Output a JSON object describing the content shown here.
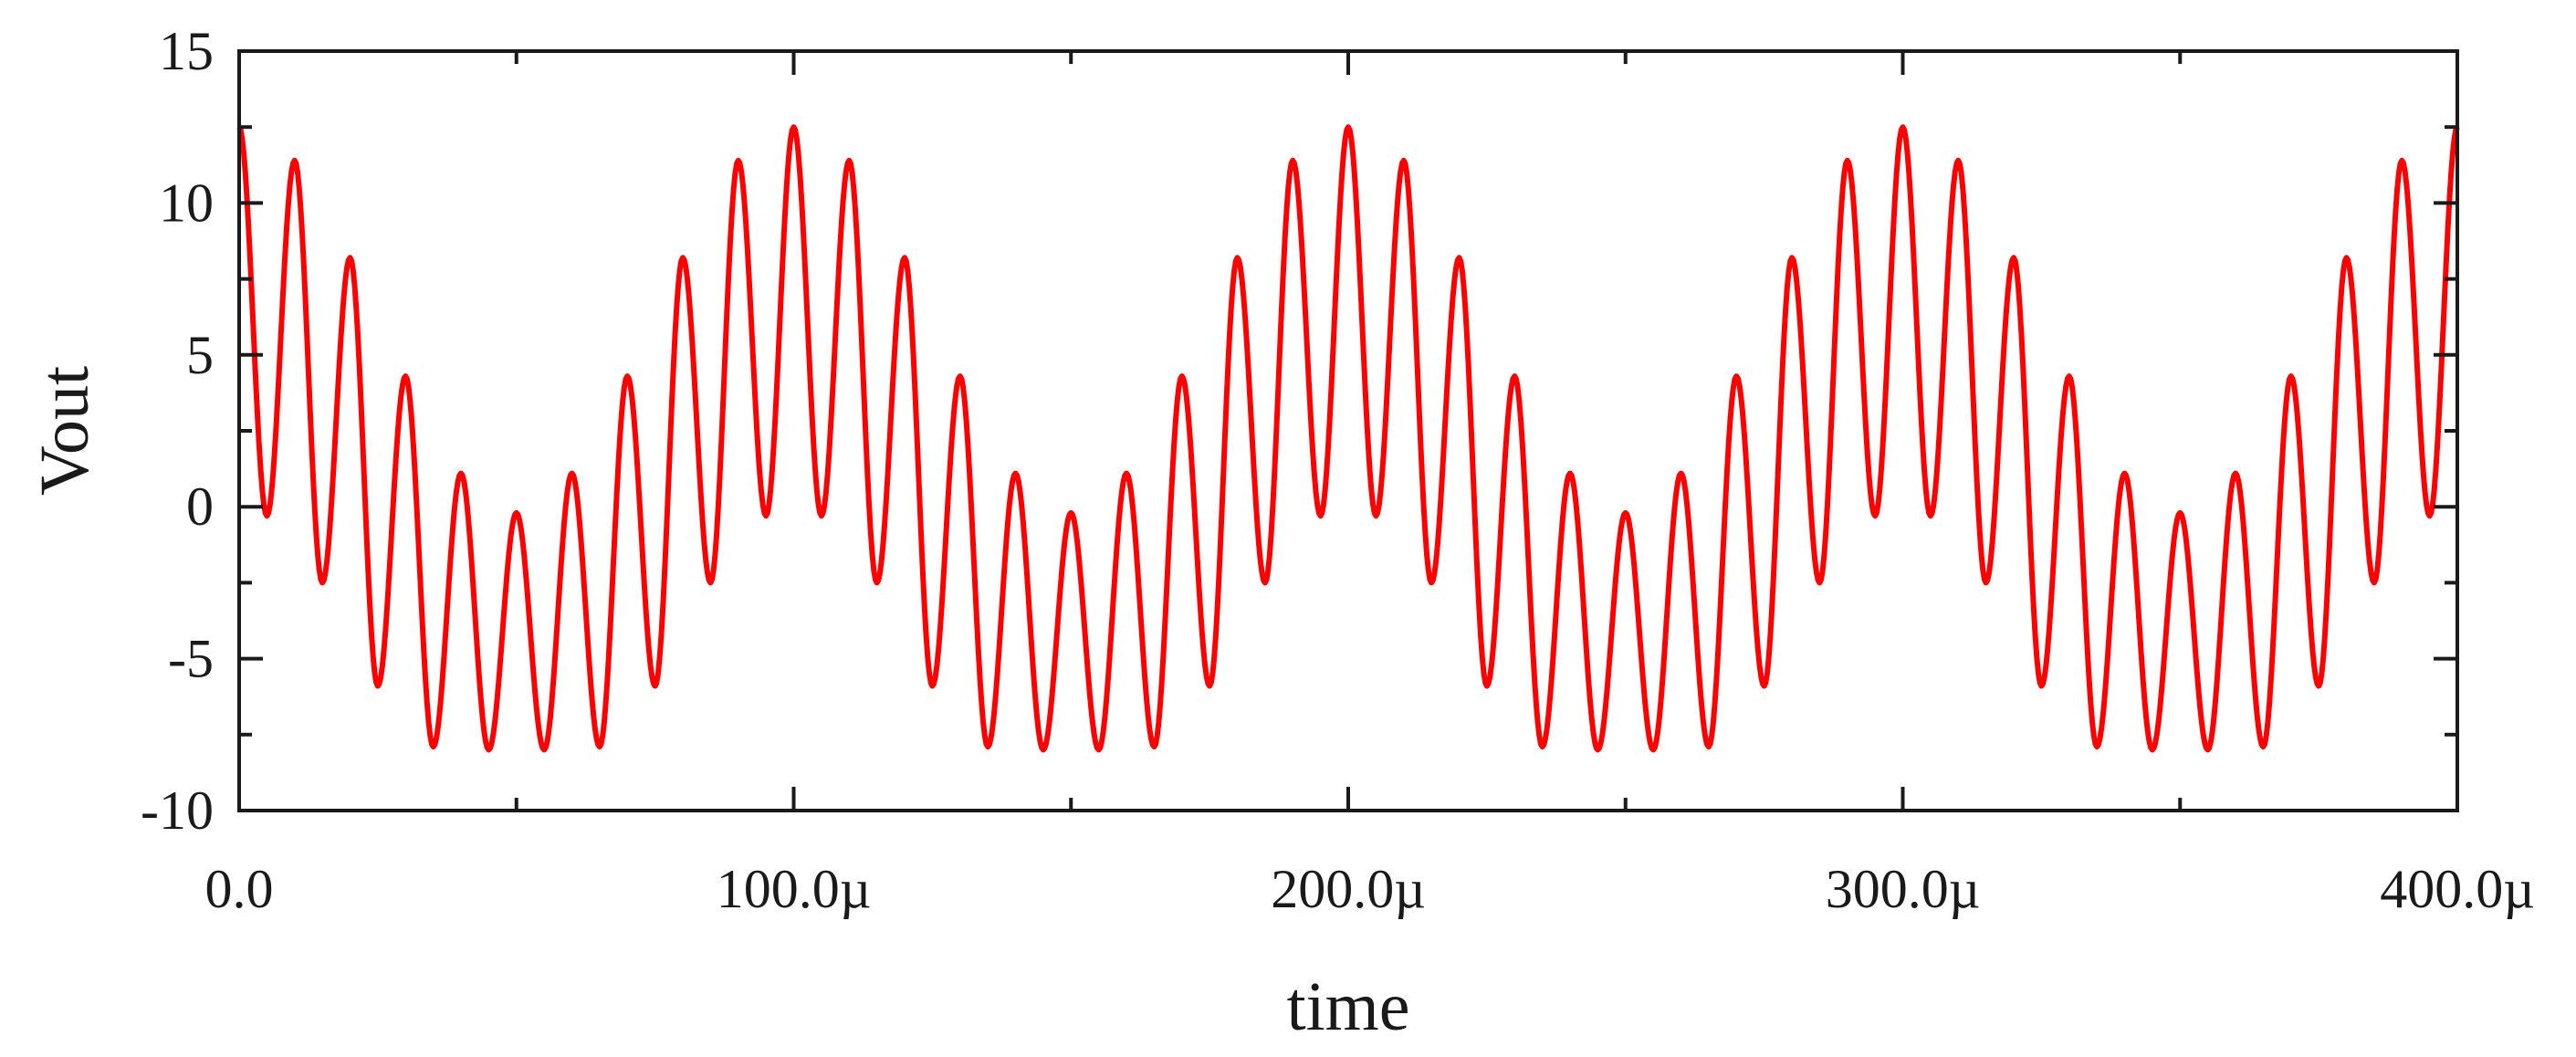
{
  "chart_data": {
    "type": "line",
    "title": "",
    "xlabel": "time",
    "ylabel": "Vout",
    "xlim": [
      0,
      0.0004
    ],
    "ylim": [
      -10,
      15
    ],
    "grid": false,
    "legend": "none",
    "x_ticks": [
      {
        "value": 0,
        "label": "0.0"
      },
      {
        "value": 0.0001,
        "label": "100.0µ"
      },
      {
        "value": 0.0002,
        "label": "200.0µ"
      },
      {
        "value": 0.0003,
        "label": "300.0µ"
      },
      {
        "value": 0.0004,
        "label": "400.0µ"
      }
    ],
    "y_ticks": [
      {
        "value": -10,
        "label": "-10"
      },
      {
        "value": -5,
        "label": "-5"
      },
      {
        "value": 0,
        "label": "0"
      },
      {
        "value": 5,
        "label": "5"
      },
      {
        "value": 10,
        "label": "10"
      },
      {
        "value": 15,
        "label": "15"
      }
    ],
    "series": [
      {
        "color": "#ff0000",
        "x": [
          0,
          1e-05,
          2e-05,
          3e-05,
          4e-05,
          5e-05,
          6e-05,
          7e-05,
          8e-05,
          9e-05,
          0.0001,
          0.00011,
          0.00012,
          0.00013,
          0.00014,
          0.00015,
          0.00016,
          0.00017,
          0.00018,
          0.00019,
          0.0002,
          0.00021,
          0.00022,
          0.00023,
          0.00024,
          0.00025,
          0.00026,
          0.00027,
          0.00028,
          0.00029,
          0.0003,
          0.00031,
          0.00032,
          0.00033,
          0.00034,
          0.00035,
          0.00036,
          0.00037,
          0.00038,
          0.00039,
          0.0004
        ],
        "peaks": [
          12.5,
          11.4,
          8.2,
          4.3,
          1.1,
          -0.2,
          1.1,
          4.3,
          8.2,
          11.4,
          12.5,
          11.4,
          8.2,
          4.3,
          1.1,
          -0.2,
          1.1,
          4.3,
          8.2,
          11.4,
          12.5,
          11.4,
          8.2,
          4.3,
          1.1,
          -0.2,
          1.1,
          4.3,
          8.2,
          11.4,
          12.5,
          11.4,
          8.2,
          4.3,
          1.1,
          -0.2,
          1.1,
          4.3,
          8.2,
          11.4,
          12.5
        ],
        "troughs_x": [
          5e-06,
          1.5e-05,
          2.5e-05,
          3.5e-05,
          4.5e-05,
          5.5e-05,
          6.5e-05,
          7.5e-05,
          8.5e-05,
          9.5e-05,
          0.000105,
          0.000115,
          0.000125,
          0.000135,
          0.000145,
          0.000155,
          0.000165,
          0.000175,
          0.000185,
          0.000195,
          0.000205,
          0.000215,
          0.000225,
          0.000235,
          0.000245,
          0.000255,
          0.000265,
          0.000275,
          0.000285,
          0.000295,
          0.000305,
          0.000315,
          0.000325,
          0.000335,
          0.000345,
          0.000355,
          0.000365,
          0.000375,
          0.000385,
          0.000395
        ],
        "troughs": [
          -0.3,
          -2.5,
          -5.9,
          -7.9,
          -8.0,
          -8.0,
          -7.9,
          -5.9,
          -2.5,
          -0.3,
          -0.3,
          -2.5,
          -5.9,
          -7.9,
          -8.0,
          -8.0,
          -7.9,
          -5.9,
          -2.5,
          -0.3,
          -0.3,
          -2.5,
          -5.9,
          -7.9,
          -8.0,
          -8.0,
          -7.9,
          -5.9,
          -2.5,
          -0.3,
          -0.3,
          -2.5,
          -5.9,
          -7.9,
          -8.0,
          -8.0,
          -7.9,
          -5.9,
          -2.5,
          -0.3
        ]
      }
    ]
  }
}
